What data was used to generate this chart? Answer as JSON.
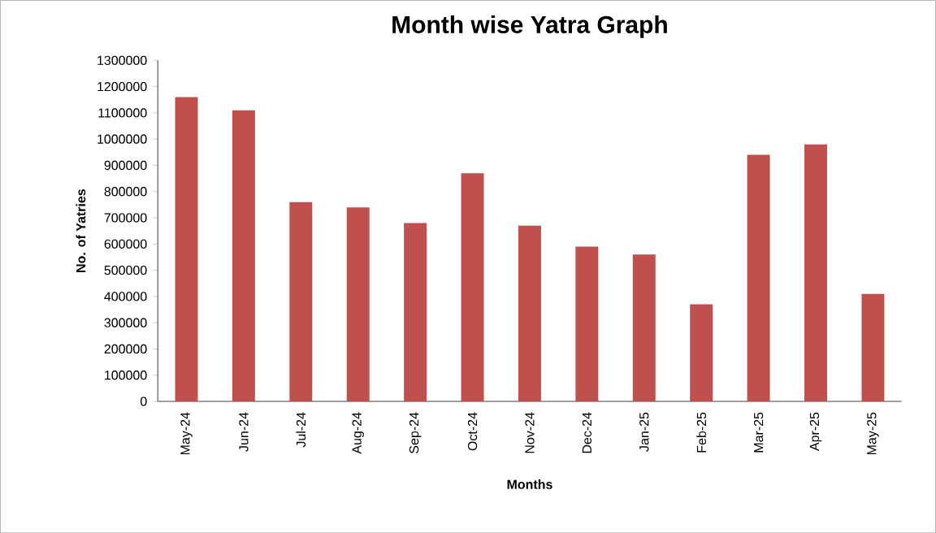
{
  "chart_data": {
    "type": "bar",
    "title": "Month wise Yatra Graph",
    "xlabel": "Months",
    "ylabel": "No. of Yatries",
    "categories": [
      "May-24",
      "Jun-24",
      "Jul-24",
      "Aug-24",
      "Sep-24",
      "Oct-24",
      "Nov-24",
      "Dec-24",
      "Jan-25",
      "Feb-25",
      "Mar-25",
      "Apr-25",
      "May-25"
    ],
    "values": [
      1160000,
      1110000,
      760000,
      740000,
      680000,
      870000,
      670000,
      590000,
      560000,
      370000,
      940000,
      980000,
      410000
    ],
    "color": "#c0504d",
    "ylim": [
      0,
      1300000
    ],
    "yticks": [
      0,
      100000,
      200000,
      300000,
      400000,
      500000,
      600000,
      700000,
      800000,
      900000,
      1000000,
      1100000,
      1200000,
      1300000
    ],
    "grid": false
  }
}
